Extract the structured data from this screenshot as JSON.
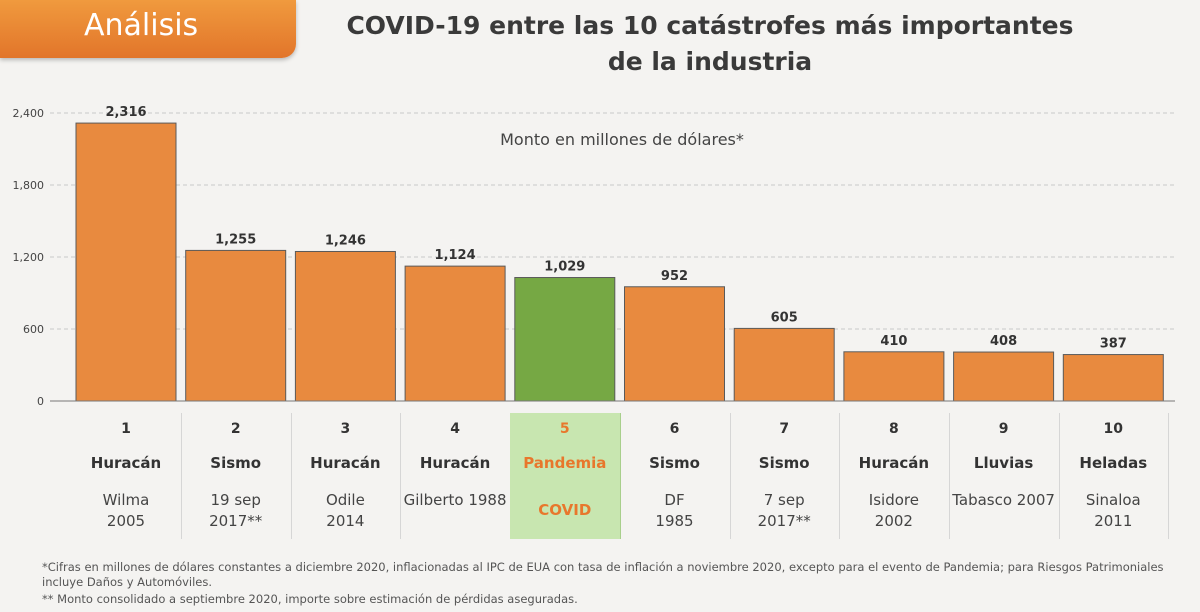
{
  "header": {
    "tag": "Análisis",
    "title": "COVID-19 entre las 10 catástrofes más importantes de la industria"
  },
  "colors": {
    "bar": "#e88a3f",
    "highlight_bar": "#76a844",
    "tag": "#e9832f"
  },
  "chart_data": {
    "type": "bar",
    "title": "COVID-19 entre las 10 catástrofes más importantes de la industria",
    "subtitle": "Monto en millones de dólares*",
    "categories": [
      "1",
      "2",
      "3",
      "4",
      "5",
      "6",
      "7",
      "8",
      "9",
      "10"
    ],
    "values": [
      2316,
      1255,
      1246,
      1124,
      1029,
      952,
      605,
      410,
      408,
      387
    ],
    "value_labels": [
      "2,316",
      "1,255",
      "1,246",
      "1,124",
      "1,029",
      "952",
      "605",
      "410",
      "408",
      "387"
    ],
    "highlight_index": 4,
    "ylim": [
      0,
      2400
    ],
    "yticks": [
      0,
      600,
      1200,
      1800,
      2400
    ],
    "ytick_labels": [
      "0",
      "600",
      "1,200",
      "1,800",
      "2,400"
    ],
    "grid": true,
    "legend": "none"
  },
  "table": [
    {
      "num": "1",
      "type": "Huracán",
      "event": "Wilma\n2005"
    },
    {
      "num": "2",
      "type": "Sismo",
      "event": "19 sep\n2017**"
    },
    {
      "num": "3",
      "type": "Huracán",
      "event": "Odile\n2014"
    },
    {
      "num": "4",
      "type": "Huracán",
      "event": "Gilberto 1988"
    },
    {
      "num": "5",
      "type": "Pandemia",
      "event": "COVID"
    },
    {
      "num": "6",
      "type": "Sismo",
      "event": "DF\n1985"
    },
    {
      "num": "7",
      "type": "Sismo",
      "event": "7 sep\n2017**"
    },
    {
      "num": "8",
      "type": "Huracán",
      "event": "Isidore\n2002"
    },
    {
      "num": "9",
      "type": "Lluvias",
      "event": "Tabasco 2007"
    },
    {
      "num": "10",
      "type": "Heladas",
      "event": "Sinaloa\n2011"
    }
  ],
  "notes": {
    "note1": "*Cifras en millones de dólares constantes a diciembre 2020, inflacionadas al IPC de EUA con tasa de inflación a noviembre 2020, excepto para el evento de Pandemia; para Riesgos Patrimoniales incluye Daños y Automóviles.",
    "note2": "** Monto consolidado a septiembre 2020, importe sobre estimación de pérdidas aseguradas."
  }
}
